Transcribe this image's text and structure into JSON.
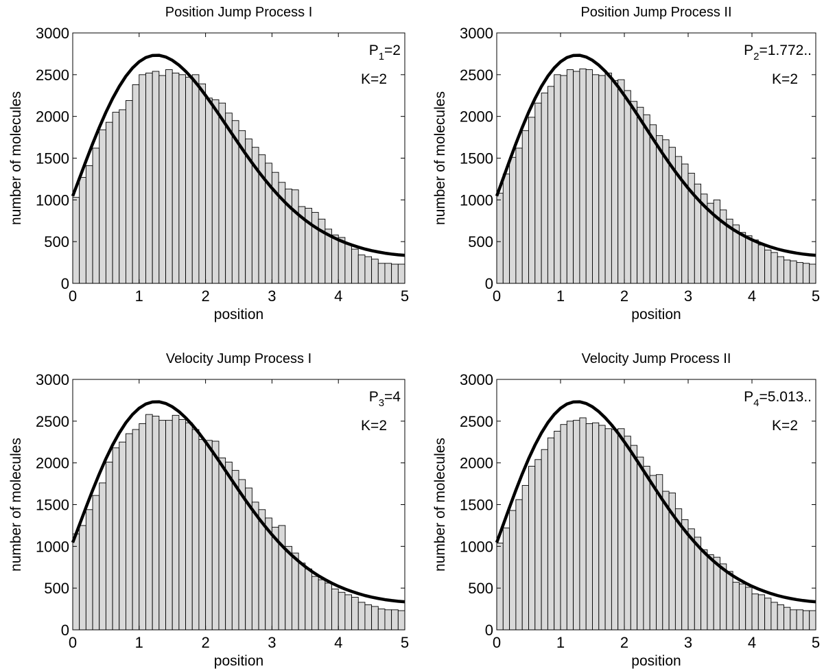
{
  "chart_data": [
    {
      "type": "bar",
      "title": "Position Jump Process I",
      "xlabel": "position",
      "ylabel": "number of molecules",
      "xlim": [
        0,
        5
      ],
      "ylim": [
        0,
        3000
      ],
      "xticks": [
        "0",
        "1",
        "2",
        "3",
        "4",
        "5"
      ],
      "yticks": [
        "0",
        "500",
        "1000",
        "1500",
        "2000",
        "2500",
        "3000"
      ],
      "annotation": {
        "param_base": "P",
        "param_sub": "1",
        "param_val": "=2",
        "k": "K=2"
      },
      "bin_width": 0.1,
      "values": [
        1030,
        1270,
        1410,
        1620,
        1840,
        1930,
        2050,
        2080,
        2190,
        2380,
        2500,
        2520,
        2540,
        2490,
        2560,
        2520,
        2500,
        2470,
        2500,
        2390,
        2220,
        2200,
        2160,
        2040,
        1950,
        1830,
        1730,
        1630,
        1540,
        1440,
        1330,
        1210,
        1130,
        1120,
        920,
        900,
        850,
        770,
        650,
        580,
        550,
        470,
        410,
        340,
        320,
        290,
        240,
        240,
        230,
        230
      ],
      "curve": {
        "name": "",
        "values": [
          1046,
          1256,
          1467,
          1673,
          1868,
          2050,
          2214,
          2358,
          2481,
          2580,
          2655,
          2705,
          2730,
          2732,
          2712,
          2672,
          2614,
          2541,
          2455,
          2358,
          2252,
          2141,
          2025,
          1907,
          1789,
          1671,
          1555,
          1444,
          1337,
          1236,
          1140,
          1051,
          968,
          892,
          822,
          758,
          700,
          648,
          602,
          560,
          522,
          489,
          460,
          434,
          411,
          392,
          376,
          362,
          351,
          342,
          336
        ]
      }
    },
    {
      "type": "bar",
      "title": "Position Jump Process II",
      "xlabel": "position",
      "ylabel": "number of molecules",
      "xlim": [
        0,
        5
      ],
      "ylim": [
        0,
        3000
      ],
      "xticks": [
        "0",
        "1",
        "2",
        "3",
        "4",
        "5"
      ],
      "yticks": [
        "0",
        "500",
        "1000",
        "1500",
        "2000",
        "2500",
        "3000"
      ],
      "annotation": {
        "param_base": "P",
        "param_sub": "2",
        "param_val": "=1.772..",
        "k": "K=2"
      },
      "bin_width": 0.1,
      "values": [
        1080,
        1310,
        1510,
        1620,
        1830,
        1990,
        2160,
        2280,
        2360,
        2500,
        2490,
        2560,
        2540,
        2570,
        2560,
        2500,
        2490,
        2520,
        2430,
        2440,
        2310,
        2180,
        2110,
        2020,
        1900,
        1770,
        1720,
        1630,
        1520,
        1430,
        1320,
        1190,
        1070,
        960,
        1000,
        880,
        770,
        700,
        610,
        570,
        520,
        460,
        400,
        370,
        320,
        280,
        270,
        250,
        240,
        230
      ],
      "curve": {
        "name": "",
        "values": [
          1046,
          1256,
          1467,
          1673,
          1868,
          2050,
          2214,
          2358,
          2481,
          2580,
          2655,
          2705,
          2730,
          2732,
          2712,
          2672,
          2614,
          2541,
          2455,
          2358,
          2252,
          2141,
          2025,
          1907,
          1789,
          1671,
          1555,
          1444,
          1337,
          1236,
          1140,
          1051,
          968,
          892,
          822,
          758,
          700,
          648,
          602,
          560,
          522,
          489,
          460,
          434,
          411,
          392,
          376,
          362,
          351,
          342,
          336
        ]
      }
    },
    {
      "type": "bar",
      "title": "Velocity Jump Process I",
      "xlabel": "position",
      "ylabel": "number of molecules",
      "xlim": [
        0,
        5
      ],
      "ylim": [
        0,
        3000
      ],
      "xticks": [
        "0",
        "1",
        "2",
        "3",
        "4",
        "5"
      ],
      "yticks": [
        "0",
        "500",
        "1000",
        "1500",
        "2000",
        "2500",
        "3000"
      ],
      "annotation": {
        "param_base": "P",
        "param_sub": "3",
        "param_val": "=4",
        "k": "K=2"
      },
      "bin_width": 0.1,
      "values": [
        1150,
        1250,
        1440,
        1610,
        1760,
        2010,
        2180,
        2250,
        2350,
        2400,
        2470,
        2580,
        2560,
        2510,
        2510,
        2570,
        2520,
        2480,
        2400,
        2280,
        2270,
        2260,
        2060,
        2010,
        1910,
        1800,
        1700,
        1530,
        1440,
        1340,
        1230,
        1250,
        1000,
        920,
        800,
        730,
        640,
        600,
        560,
        490,
        450,
        420,
        390,
        330,
        300,
        280,
        250,
        240,
        240,
        230
      ],
      "curve": {
        "name": "",
        "values": [
          1046,
          1256,
          1467,
          1673,
          1868,
          2050,
          2214,
          2358,
          2481,
          2580,
          2655,
          2705,
          2730,
          2732,
          2712,
          2672,
          2614,
          2541,
          2455,
          2358,
          2252,
          2141,
          2025,
          1907,
          1789,
          1671,
          1555,
          1444,
          1337,
          1236,
          1140,
          1051,
          968,
          892,
          822,
          758,
          700,
          648,
          602,
          560,
          522,
          489,
          460,
          434,
          411,
          392,
          376,
          362,
          351,
          342,
          336
        ]
      }
    },
    {
      "type": "bar",
      "title": "Velocity Jump Process II",
      "xlabel": "position",
      "ylabel": "number of molecules",
      "xlim": [
        0,
        5
      ],
      "ylim": [
        0,
        3000
      ],
      "xticks": [
        "0",
        "1",
        "2",
        "3",
        "4",
        "5"
      ],
      "yticks": [
        "0",
        "500",
        "1000",
        "1500",
        "2000",
        "2500",
        "3000"
      ],
      "annotation": {
        "param_base": "P",
        "param_sub": "4",
        "param_val": "=5.013..",
        "k": "K=2"
      },
      "bin_width": 0.1,
      "values": [
        1040,
        1220,
        1430,
        1560,
        1730,
        1960,
        2040,
        2160,
        2300,
        2380,
        2460,
        2500,
        2510,
        2540,
        2470,
        2480,
        2450,
        2410,
        2400,
        2410,
        2320,
        2210,
        2070,
        1960,
        1850,
        1860,
        1660,
        1640,
        1450,
        1320,
        1210,
        1110,
        960,
        900,
        870,
        790,
        700,
        570,
        550,
        510,
        430,
        420,
        380,
        330,
        300,
        270,
        240,
        240,
        230,
        230
      ],
      "curve": {
        "name": "",
        "values": [
          1046,
          1256,
          1467,
          1673,
          1868,
          2050,
          2214,
          2358,
          2481,
          2580,
          2655,
          2705,
          2730,
          2732,
          2712,
          2672,
          2614,
          2541,
          2455,
          2358,
          2252,
          2141,
          2025,
          1907,
          1789,
          1671,
          1555,
          1444,
          1337,
          1236,
          1140,
          1051,
          968,
          892,
          822,
          758,
          700,
          648,
          602,
          560,
          522,
          489,
          460,
          434,
          411,
          392,
          376,
          362,
          351,
          342,
          336
        ]
      }
    }
  ]
}
